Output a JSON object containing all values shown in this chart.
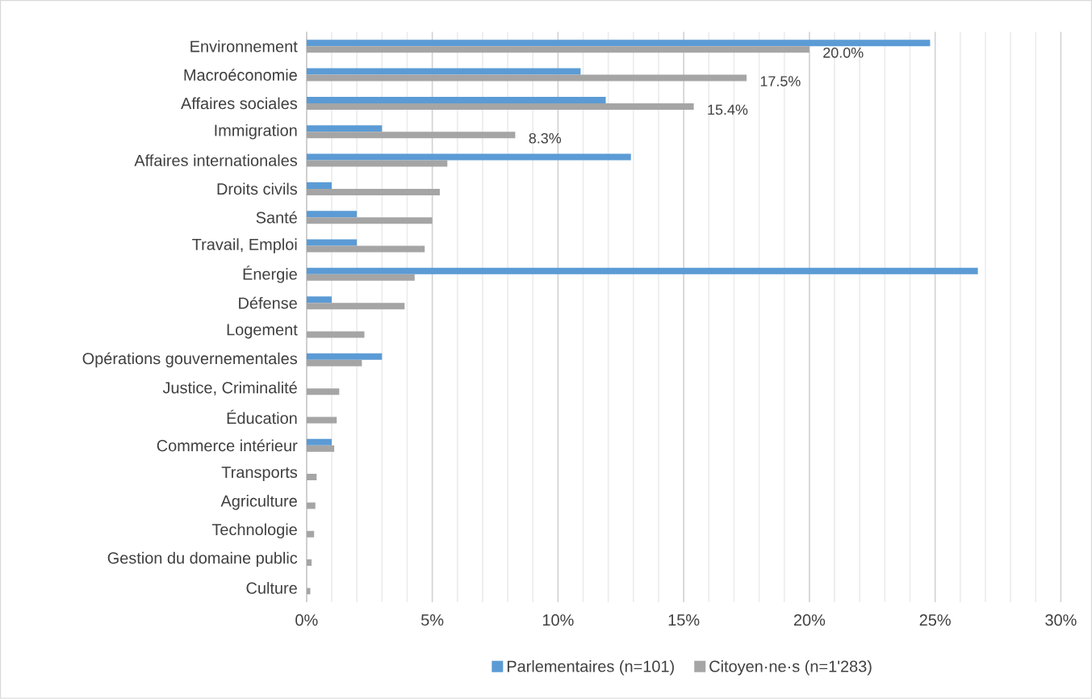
{
  "chart_data": {
    "type": "bar",
    "orientation": "horizontal",
    "categories": [
      "Environnement",
      "Macroéconomie",
      "Affaires sociales",
      "Immigration",
      "Affaires internationales",
      "Droits civils",
      "Santé",
      "Travail, Emploi",
      "Énergie",
      "Défense",
      "Logement",
      "Opérations gouvernementales",
      "Justice, Criminalité",
      "Éducation",
      "Commerce intérieur",
      "Transports",
      "Agriculture",
      "Technologie",
      "Gestion du domaine public",
      "Culture"
    ],
    "series": [
      {
        "name": "Parlementaires (n=101)",
        "color": "#5b9bd5",
        "values": [
          24.8,
          10.9,
          11.9,
          3.0,
          12.9,
          1.0,
          2.0,
          2.0,
          26.7,
          1.0,
          0,
          3.0,
          0,
          0,
          1.0,
          0,
          0,
          0,
          0,
          0
        ]
      },
      {
        "name": "Citoyen·ne·s (n=1'283)",
        "color": "#a5a5a5",
        "values": [
          20.0,
          17.5,
          15.4,
          8.3,
          5.6,
          5.3,
          5.0,
          4.7,
          4.3,
          3.9,
          2.3,
          2.2,
          1.3,
          1.2,
          1.1,
          0.4,
          0.35,
          0.3,
          0.2,
          0.15
        ],
        "value_labels": [
          "20.0%",
          "17.5%",
          "15.4%",
          "8.3%",
          null,
          null,
          null,
          null,
          null,
          null,
          null,
          null,
          null,
          null,
          null,
          null,
          null,
          null,
          null,
          null
        ]
      }
    ],
    "xlim": [
      0,
      30
    ],
    "xticks": [
      {
        "value": 0,
        "label": "0%"
      },
      {
        "value": 5,
        "label": "5%"
      },
      {
        "value": 10,
        "label": "10%"
      },
      {
        "value": 15,
        "label": "15%"
      },
      {
        "value": 20,
        "label": "20%"
      },
      {
        "value": 25,
        "label": "25%"
      },
      {
        "value": 30,
        "label": "30%"
      }
    ],
    "grid": "x",
    "legend": "bottom"
  }
}
